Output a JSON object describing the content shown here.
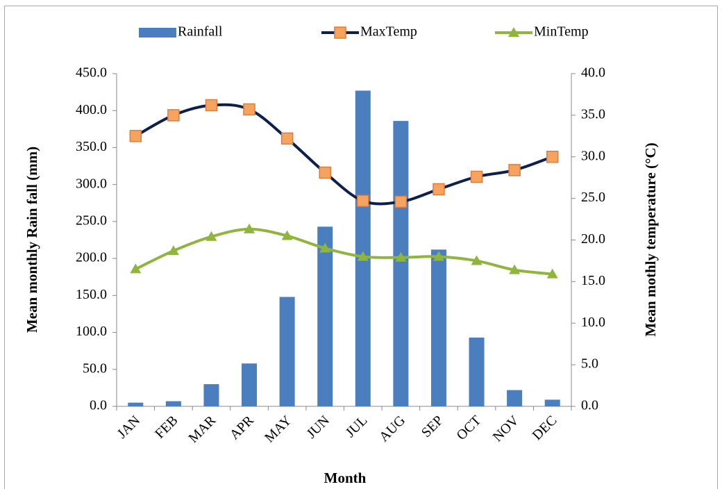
{
  "chart_data": {
    "type": "bar-line",
    "x_label": "Month",
    "y_label": "Mean monthly Rain fall (mm)",
    "y2_label": "Mean mothly temperature (°C)",
    "categories": [
      "JAN",
      "FEB",
      "MAR",
      "APR",
      "MAY",
      "JUN",
      "JUL",
      "AUG",
      "SEP",
      "OCT",
      "NOV",
      "DEC"
    ],
    "series": [
      {
        "name": "Rainfall",
        "type": "bar",
        "color": "#4a7ebf",
        "values": [
          5,
          7,
          30,
          58,
          148,
          243,
          427,
          386,
          212,
          93,
          22,
          9
        ]
      },
      {
        "name": "MaxTemp",
        "type": "line",
        "axis": "y2",
        "color": "#0c1f4f",
        "marker": "square",
        "marker_color": "#f4a460",
        "values": [
          32.5,
          35.0,
          36.2,
          35.7,
          32.2,
          28.1,
          24.7,
          24.6,
          26.1,
          27.6,
          28.4,
          30.0
        ]
      },
      {
        "name": "MinTemp",
        "type": "line",
        "axis": "y2",
        "color": "#8fb53e",
        "marker": "triangle",
        "marker_color": "#8fb53e",
        "values": [
          16.5,
          18.7,
          20.4,
          21.3,
          20.5,
          19.0,
          18.0,
          17.9,
          18.0,
          17.5,
          16.4,
          15.9
        ]
      }
    ],
    "ylim": [
      0,
      450
    ],
    "yticks": [
      {
        "value": 0,
        "label": "0.0"
      },
      {
        "value": 50,
        "label": "50.0"
      },
      {
        "value": 100,
        "label": "100.0"
      },
      {
        "value": 150,
        "label": "150.0"
      },
      {
        "value": 200,
        "label": "200.0"
      },
      {
        "value": 250,
        "label": "250.0"
      },
      {
        "value": 300,
        "label": "300.0"
      },
      {
        "value": 350,
        "label": "350.0"
      },
      {
        "value": 400,
        "label": "400.0"
      },
      {
        "value": 450,
        "label": "450.0"
      }
    ],
    "y2lim": [
      0,
      40
    ],
    "y2ticks": [
      {
        "value": 0,
        "label": "0.0"
      },
      {
        "value": 5,
        "label": "5.0"
      },
      {
        "value": 10,
        "label": "10.0"
      },
      {
        "value": 15,
        "label": "15.0"
      },
      {
        "value": 20,
        "label": "20.0"
      },
      {
        "value": 25,
        "label": "25.0"
      },
      {
        "value": 30,
        "label": "30.0"
      },
      {
        "value": 35,
        "label": "35.0"
      },
      {
        "value": 40,
        "label": "40.0"
      }
    ],
    "legend": "top",
    "grid": false
  }
}
